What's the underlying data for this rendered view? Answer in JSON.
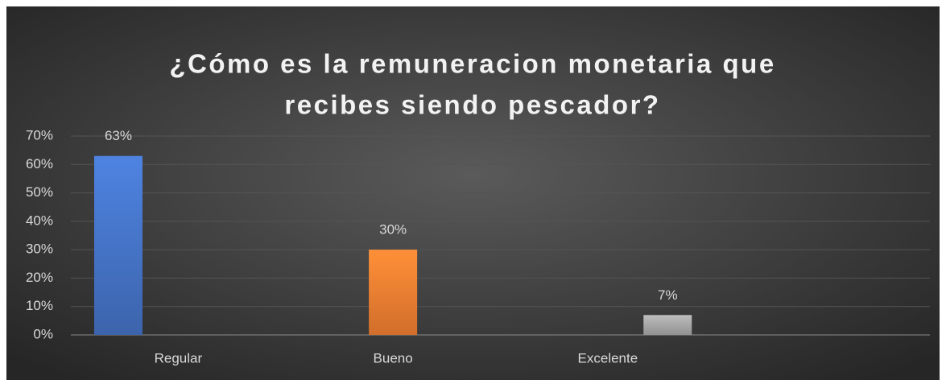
{
  "chart_data": {
    "type": "bar",
    "title_lines": [
      "¿Cómo es la remuneracion monetaria que",
      "recibes siendo pescador?"
    ],
    "categories": [
      "Regular",
      "Bueno",
      "Excelente",
      null
    ],
    "series": [
      {
        "color": "#4472c4",
        "values": [
          63,
          null,
          null,
          null
        ],
        "value_labels": [
          "63%",
          null,
          null,
          null
        ]
      },
      {
        "color": "#ed7d31",
        "values": [
          null,
          30,
          null,
          null
        ],
        "value_labels": [
          null,
          "30%",
          null,
          null
        ]
      },
      {
        "color": "#a5a5a5",
        "values": [
          null,
          null,
          7,
          null
        ],
        "value_labels": [
          null,
          null,
          "7%",
          null
        ]
      }
    ],
    "ylim": [
      0,
      70
    ],
    "yticks": [
      {
        "value": 0,
        "label": "0%"
      },
      {
        "value": 10,
        "label": "10%"
      },
      {
        "value": 20,
        "label": "20%"
      },
      {
        "value": 30,
        "label": "30%"
      },
      {
        "value": 40,
        "label": "40%"
      },
      {
        "value": 50,
        "label": "50%"
      },
      {
        "value": 60,
        "label": "60%"
      },
      {
        "value": 70,
        "label": "70%"
      }
    ],
    "grid": true
  }
}
